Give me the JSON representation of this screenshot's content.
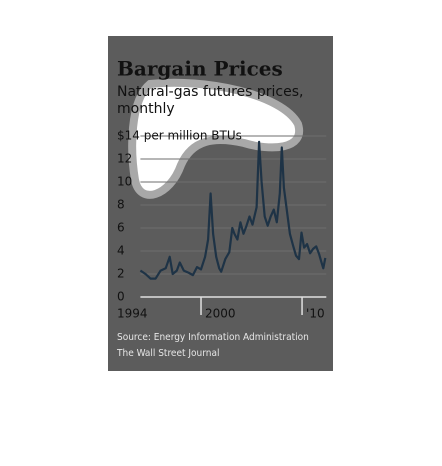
{
  "chart_data": {
    "type": "line",
    "title": "Bargain Prices",
    "subtitle": "Natural-gas futures prices, monthly",
    "source": "Source: Energy Information Administration",
    "credit": "The Wall Street Journal",
    "x": [
      1994.0,
      1994.5,
      1995.0,
      1995.5,
      1996.0,
      1996.5,
      1996.9,
      1997.2,
      1997.6,
      1997.9,
      1998.3,
      1998.8,
      1999.2,
      1999.6,
      2000.0,
      2000.4,
      2000.7,
      2000.95,
      2001.2,
      2001.5,
      2001.8,
      2002.0,
      2002.4,
      2002.8,
      2003.1,
      2003.3,
      2003.6,
      2003.9,
      2004.2,
      2004.5,
      2004.8,
      2005.1,
      2005.5,
      2005.75,
      2006.0,
      2006.3,
      2006.6,
      2006.9,
      2007.2,
      2007.5,
      2007.8,
      2008.0,
      2008.2,
      2008.5,
      2008.8,
      2009.1,
      2009.4,
      2009.7,
      2009.95,
      2010.2,
      2010.5,
      2010.8,
      2011.1,
      2011.4,
      2011.7,
      2011.9,
      2012.1,
      2012.3
    ],
    "series": [
      {
        "name": "Natural-gas futures",
        "color": "#1e3346",
        "values": [
          2.3,
          2.0,
          1.6,
          1.6,
          2.3,
          2.5,
          3.5,
          2.0,
          2.3,
          3.0,
          2.3,
          2.1,
          1.9,
          2.6,
          2.4,
          3.5,
          5.0,
          9.0,
          5.5,
          3.5,
          2.5,
          2.2,
          3.3,
          3.9,
          6.0,
          5.5,
          5.0,
          6.5,
          5.5,
          6.2,
          7.0,
          6.3,
          7.8,
          13.5,
          10.0,
          7.0,
          6.2,
          7.0,
          7.6,
          6.5,
          9.0,
          13.0,
          9.5,
          7.5,
          5.5,
          4.5,
          3.6,
          3.3,
          5.6,
          4.3,
          4.6,
          3.8,
          4.2,
          4.4,
          3.7,
          3.1,
          2.5,
          3.4
        ]
      }
    ],
    "xlim": [
      1994,
      2012.4
    ],
    "xticks": [
      1994,
      2000,
      {
        "value": 2010,
        "label": "'10"
      }
    ],
    "ylim": [
      0,
      14
    ],
    "yticks": [
      0,
      2,
      4,
      6,
      8,
      10,
      12,
      {
        "value": 14,
        "label": "$14 per million BTUs"
      }
    ],
    "grid": true
  }
}
